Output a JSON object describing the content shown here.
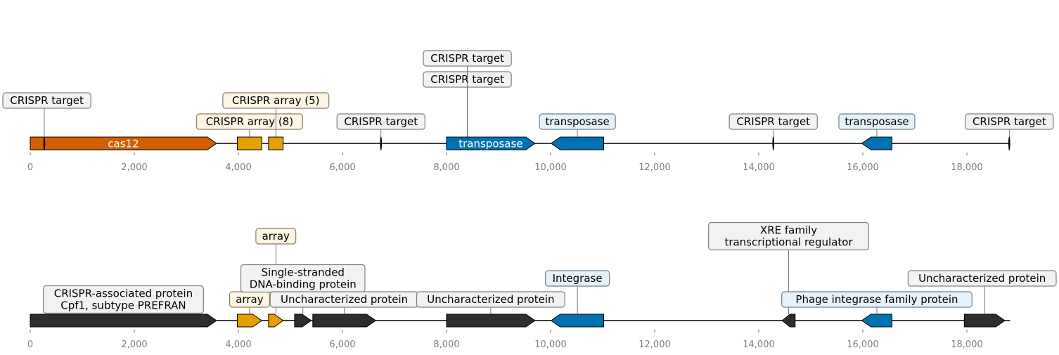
{
  "colors": {
    "cas12": "#d55e00",
    "array": "#e69f00",
    "transposase": "#0072b2",
    "target": "#000000",
    "dark": "#2d2d2d",
    "box_grey": "#f2f2f2",
    "box_yellow": "#fdf5e3",
    "box_blue": "#e6f2fa",
    "box_border_grey": "#808080",
    "box_border_yellow": "#8a7d66",
    "box_border_blue": "#6f7f8c"
  },
  "tracks": [
    {
      "ticks": [
        {
          "value": 0,
          "label": "0"
        },
        {
          "value": 2000,
          "label": "2,000"
        },
        {
          "value": 4000,
          "label": "4,000"
        },
        {
          "value": 6000,
          "label": "6,000"
        },
        {
          "value": 8000,
          "label": "8,000"
        },
        {
          "value": 10000,
          "label": "10,000"
        },
        {
          "value": 12000,
          "label": "12,000"
        },
        {
          "value": 14000,
          "label": "14,000"
        },
        {
          "value": 16000,
          "label": "16,000"
        },
        {
          "value": 18000,
          "label": "18,000"
        }
      ],
      "range": [
        0,
        18830
      ],
      "features": [
        {
          "id": "cas12",
          "start": 0,
          "end": 3580,
          "strand": 1,
          "color": "cas12",
          "inner_label": "cas12"
        },
        {
          "id": "array-a",
          "start": 3980,
          "end": 4450,
          "strand": 0,
          "color": "array",
          "label": "CRISPR array (8)",
          "level": 1,
          "box": "yellow"
        },
        {
          "id": "array-b",
          "start": 4580,
          "end": 4860,
          "strand": 0,
          "color": "array",
          "label": "CRISPR array (5)",
          "level": 2,
          "box": "yellow"
        },
        {
          "id": "target-1",
          "start": 250,
          "end": 290,
          "strand": 0,
          "color": "target",
          "marker": true,
          "label": "CRISPR target",
          "level": 2,
          "box": "grey"
        },
        {
          "id": "target-2",
          "start": 6720,
          "end": 6760,
          "strand": 0,
          "color": "target",
          "marker": true,
          "label": "CRISPR target",
          "level": 1,
          "box": "grey"
        },
        {
          "id": "target-3",
          "start": 8380,
          "end": 8420,
          "strand": 0,
          "color": "target",
          "marker": true,
          "label": "CRISPR target",
          "level": 3,
          "box": "grey"
        },
        {
          "id": "target-4",
          "start": 8380,
          "end": 8420,
          "strand": 0,
          "color": "target",
          "marker": true,
          "label": "CRISPR target",
          "level": 4,
          "box": "grey"
        },
        {
          "id": "transposase-a",
          "start": 8000,
          "end": 9700,
          "strand": 1,
          "color": "transposase",
          "inner_label": "transposase"
        },
        {
          "id": "transposase-b",
          "start": 10010,
          "end": 11020,
          "strand": -1,
          "color": "transposase",
          "label": "transposase",
          "level": 1,
          "box": "blue"
        },
        {
          "id": "target-5",
          "start": 14260,
          "end": 14300,
          "strand": 0,
          "color": "target",
          "marker": true,
          "label": "CRISPR target",
          "level": 1,
          "box": "grey"
        },
        {
          "id": "transposase-c",
          "start": 15980,
          "end": 16560,
          "strand": -1,
          "color": "transposase",
          "label": "transposase",
          "level": 1,
          "box": "blue"
        },
        {
          "id": "target-6",
          "start": 18800,
          "end": 18830,
          "strand": 0,
          "color": "target",
          "marker": true,
          "label": "CRISPR target",
          "level": 1,
          "box": "grey"
        }
      ]
    },
    {
      "ticks": [
        {
          "value": 0,
          "label": "0"
        },
        {
          "value": 2000,
          "label": "2,000"
        },
        {
          "value": 4000,
          "label": "4,000"
        },
        {
          "value": 6000,
          "label": "6,000"
        },
        {
          "value": 8000,
          "label": "8,000"
        },
        {
          "value": 10000,
          "label": "10,000"
        },
        {
          "value": 12000,
          "label": "12,000"
        },
        {
          "value": 14000,
          "label": "14,000"
        },
        {
          "value": 16000,
          "label": "16,000"
        },
        {
          "value": 18000,
          "label": "18,000"
        }
      ],
      "range": [
        0,
        18830
      ],
      "features": [
        {
          "id": "cpf1",
          "start": 0,
          "end": 3580,
          "strand": 1,
          "color": "dark",
          "label": "CRISPR-associated protein\nCpf1, subtype PREFRAN",
          "level": 1,
          "box": "grey"
        },
        {
          "id": "array-c",
          "start": 3980,
          "end": 4450,
          "strand": 1,
          "color": "array",
          "label": "array",
          "level": 1,
          "box": "yellow"
        },
        {
          "id": "array-d",
          "start": 4580,
          "end": 4860,
          "strand": 1,
          "color": "array",
          "label": "array",
          "level": 3,
          "box": "yellow"
        },
        {
          "id": "ssb",
          "start": 5080,
          "end": 5400,
          "strand": 1,
          "color": "dark",
          "label": "Single-stranded\nDNA-binding protein",
          "level": 2,
          "box": "grey"
        },
        {
          "id": "uncharacterized-1",
          "start": 5430,
          "end": 6640,
          "strand": 1,
          "color": "dark",
          "label": "Uncharacterized protein",
          "level": 1,
          "box": "grey"
        },
        {
          "id": "uncharacterized-2",
          "start": 8000,
          "end": 9700,
          "strand": 1,
          "color": "dark",
          "label": "Uncharacterized protein",
          "level": 1,
          "box": "grey"
        },
        {
          "id": "integrase",
          "start": 10010,
          "end": 11020,
          "strand": -1,
          "color": "transposase",
          "label": "Integrase",
          "level": 2,
          "box": "blue"
        },
        {
          "id": "xre",
          "start": 14450,
          "end": 14700,
          "strand": -1,
          "color": "dark",
          "label": "XRE family\ntranscriptional regulator",
          "level": 3,
          "box": "grey"
        },
        {
          "id": "phage-integrase",
          "start": 15980,
          "end": 16560,
          "strand": -1,
          "color": "transposase",
          "label": "Phage integrase family protein",
          "level": 1,
          "box": "blue"
        },
        {
          "id": "uncharacterized-3",
          "start": 17950,
          "end": 18730,
          "strand": 1,
          "color": "dark",
          "label": "Uncharacterized protein",
          "level": 2,
          "box": "grey"
        }
      ]
    }
  ]
}
